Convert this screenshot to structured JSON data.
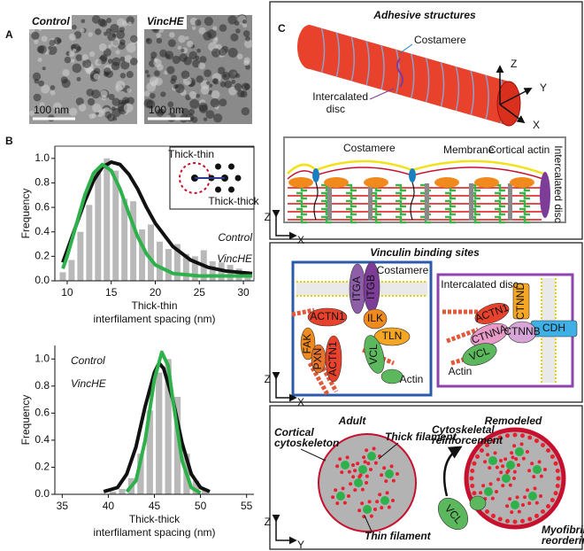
{
  "panel_labels": [
    "A",
    "B",
    "C"
  ],
  "panel_a": {
    "images": [
      {
        "label": "Control",
        "scale": "100 nm"
      },
      {
        "label": "VincHE",
        "scale": "100 nm"
      }
    ]
  },
  "chart_data": [
    {
      "type": "histogram",
      "y_label": "Frequency",
      "x_label_title": "Thick-thin",
      "x_label": "interfilament spacing (nm)",
      "bins": [
        9,
        10,
        11,
        12,
        13,
        14,
        15,
        16,
        17,
        18,
        19,
        20,
        21,
        22,
        23,
        24,
        25,
        26,
        27,
        28,
        29,
        30,
        31
      ],
      "counts": [
        0.07,
        0.17,
        0.4,
        0.62,
        0.88,
        1.0,
        0.9,
        0.67,
        0.65,
        0.42,
        0.46,
        0.32,
        0.26,
        0.3,
        0.22,
        0.2,
        0.25,
        0.16,
        0.15,
        0.13,
        0.1,
        0.05
      ],
      "bar_color": "#b9b9b9",
      "series": [
        {
          "name": "Control",
          "color": "#111111",
          "x": [
            9.5,
            11,
            12,
            13,
            14,
            15,
            16,
            17,
            18,
            19,
            20,
            22,
            24,
            26,
            28,
            31
          ],
          "values": [
            0.15,
            0.45,
            0.65,
            0.82,
            0.93,
            0.97,
            0.95,
            0.87,
            0.75,
            0.6,
            0.47,
            0.28,
            0.17,
            0.11,
            0.08,
            0.06
          ]
        },
        {
          "name": "VincHE",
          "color": "#2eb14b",
          "x": [
            9.5,
            10,
            11,
            12,
            13,
            14,
            15,
            16,
            17,
            18,
            19,
            20,
            22,
            25,
            31
          ],
          "values": [
            0.1,
            0.2,
            0.45,
            0.7,
            0.88,
            0.95,
            0.9,
            0.75,
            0.55,
            0.36,
            0.22,
            0.13,
            0.06,
            0.04,
            0.04
          ]
        }
      ],
      "xlim": [
        8.6,
        31.2
      ],
      "ylim": [
        0,
        1.1
      ],
      "xticks": [
        10,
        15,
        20,
        25,
        30
      ],
      "yticks": [
        {
          "value": 0,
          "label": "0.0"
        },
        {
          "value": 0.2,
          "label": "0.2"
        },
        {
          "value": 0.4,
          "label": "0.4"
        },
        {
          "value": 0.6,
          "label": "0.6"
        },
        {
          "value": 0.8,
          "label": "0.8"
        },
        {
          "value": 1,
          "label": "1.0"
        }
      ],
      "legend": "right",
      "inset_labels": [
        "Thick-thin",
        "Thick-thick"
      ]
    },
    {
      "type": "histogram",
      "y_label": "Frequency",
      "x_label_title": "Thick-thick",
      "x_label": "interfilament spacing (nm)",
      "bins": [
        40,
        41,
        42,
        43,
        44,
        45,
        46,
        47,
        48,
        49,
        50,
        51
      ],
      "counts": [
        0.02,
        0.04,
        0.12,
        0.3,
        0.62,
        0.9,
        1.0,
        0.72,
        0.3,
        0.1,
        0.04
      ],
      "bar_color": "#b9b9b9",
      "series": [
        {
          "name": "Control",
          "color": "#111111",
          "x": [
            39.5,
            41,
            42,
            43,
            44,
            45,
            45.5,
            46,
            47,
            48,
            49,
            50,
            51
          ],
          "values": [
            0.02,
            0.05,
            0.15,
            0.35,
            0.65,
            0.9,
            0.97,
            0.93,
            0.7,
            0.38,
            0.15,
            0.05,
            0.02
          ]
        },
        {
          "name": "VincHE",
          "color": "#2eb14b",
          "x": [
            42,
            43,
            44,
            45,
            45.8,
            46.5,
            47,
            48,
            49,
            50
          ],
          "values": [
            0.02,
            0.1,
            0.4,
            0.85,
            1.05,
            0.95,
            0.7,
            0.25,
            0.05,
            0.01
          ]
        }
      ],
      "xlim": [
        34.2,
        55.8
      ],
      "ylim": [
        0,
        1.1
      ],
      "xticks": [
        35,
        40,
        45,
        50,
        55
      ],
      "yticks": [
        {
          "value": 0,
          "label": "0.0"
        },
        {
          "value": 0.2,
          "label": "0.2"
        },
        {
          "value": 0.4,
          "label": "0.4"
        },
        {
          "value": 0.6,
          "label": "0.6"
        },
        {
          "value": 0.8,
          "label": "0.8"
        },
        {
          "value": 1,
          "label": "1.0"
        }
      ],
      "legend": "upper left"
    }
  ],
  "panel_c": {
    "adhesive": {
      "title": "Adhesive structures",
      "costamere": "Costamere",
      "intercalated_disc": [
        "Intercalated",
        "disc"
      ],
      "axes": [
        "Z",
        "Y",
        "X"
      ],
      "inset": {
        "costamere": "Costamere",
        "membrane": "Membrane",
        "cortical_actin": "Cortical actin",
        "intercalated_disc": "Intercalated disc",
        "axes": [
          "Z",
          "X"
        ]
      }
    },
    "vinculin": {
      "title": "Vinculin binding sites",
      "costamere": {
        "label": "Costamere",
        "proteins": [
          "ITGA",
          "ITGB",
          "ACTN1",
          "ILK",
          "FAK",
          "PXN",
          "ACTN1",
          "TLN",
          "VCL"
        ],
        "actin": "Actin"
      },
      "intercalated_disc": {
        "label": "Intercalated disc",
        "proteins": [
          "CTNND",
          "ACTN1",
          "CTNNA",
          "CTNNB",
          "CDH",
          "VCL"
        ],
        "actin": "Actin"
      },
      "axes": [
        "Z",
        "X"
      ]
    },
    "remodeling": {
      "adult": "Adult",
      "remodeled": "Remodeled",
      "cortical_cytoskeleton": [
        "Cortical",
        "cytoskeleton"
      ],
      "thick_filament": "Thick filament",
      "thin_filament": "Thin filament",
      "reinforcement": [
        "Cytoskeletal",
        "reinforcement"
      ],
      "vcl": "VCL",
      "reordering": [
        "Myofibril",
        "reordering"
      ],
      "axes": [
        "Z",
        "Y"
      ]
    }
  }
}
